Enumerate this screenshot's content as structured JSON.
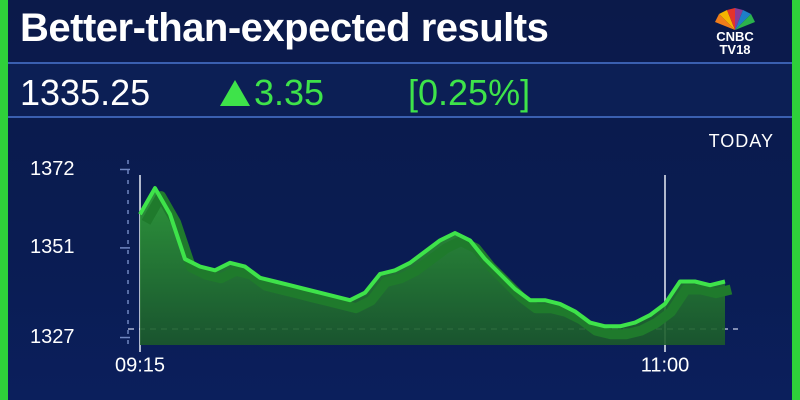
{
  "header": {
    "title": "Better-than-expected results",
    "logo": [
      "CNBC",
      "TV18"
    ],
    "price": "1335.25",
    "change": "3.35",
    "change_percent": "[0.25%]"
  },
  "chart_data": {
    "type": "line",
    "period": "TODAY",
    "categories": [
      "09:15",
      null,
      null,
      null,
      null,
      null,
      null,
      null,
      null,
      null,
      null,
      null,
      null,
      null,
      null,
      null,
      null,
      null,
      null,
      null,
      null,
      null,
      null,
      null,
      null,
      null,
      null,
      null,
      null,
      null,
      null,
      null,
      null,
      null,
      null,
      "11:00",
      null,
      null,
      null,
      null
    ],
    "series": [
      {
        "color": "#3ee34a",
        "values": [
          1360,
          1367,
          1360,
          1348,
          1346,
          1345,
          1347,
          1346,
          1343,
          1342,
          1341,
          1340,
          1339,
          1338,
          1337,
          1339,
          1344,
          1345,
          1347,
          1350,
          1353,
          1355,
          1353,
          1348,
          1344,
          1340,
          1337,
          1337,
          1336,
          1334,
          1331,
          1330,
          1330,
          1331,
          1333,
          1336,
          1342,
          1342,
          1341,
          1342
        ]
      }
    ],
    "ylim": [
      1325,
      1374
    ],
    "yticks": [
      1327,
      1351,
      1372
    ]
  }
}
